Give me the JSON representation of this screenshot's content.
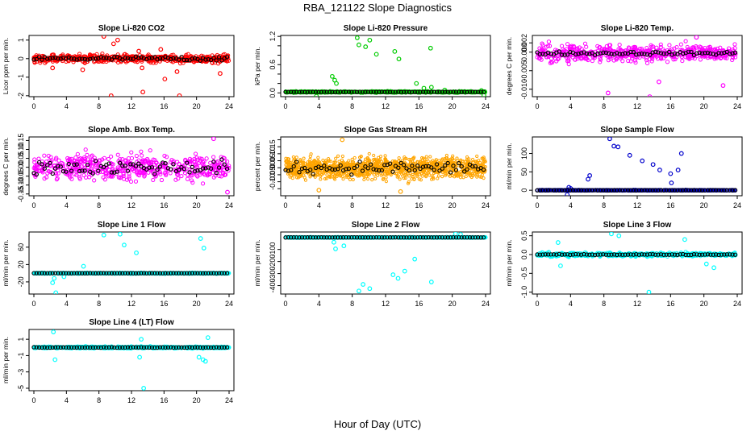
{
  "figure": {
    "title": "RBA_121122  Slope Diagnostics",
    "xlabel": "Hour of Day (UTC)"
  },
  "chart_data": [
    {
      "type": "scatter",
      "title": "Slope Li-820 CO2",
      "ylabel": "Licor ppm per min.",
      "color": "#ff0000",
      "xlim": [
        0,
        24
      ],
      "ylim": [
        -2.05,
        1.25
      ],
      "xticks": [
        "0",
        "4",
        "8",
        "12",
        "16",
        "20",
        "24"
      ],
      "yticks": [
        -2,
        -1,
        0,
        1
      ],
      "ytick_labels": [
        "-2",
        "-1",
        "0",
        "1"
      ],
      "baseline": 0,
      "spread": 0.22,
      "outliers": [
        [
          8.6,
          1.2
        ],
        [
          9.8,
          0.8
        ],
        [
          10.3,
          1.0
        ],
        [
          9.5,
          -2.0
        ],
        [
          13.4,
          -1.8
        ],
        [
          13.3,
          -0.5
        ],
        [
          12.9,
          0.4
        ],
        [
          16.1,
          -1.1
        ],
        [
          17.6,
          -0.7
        ],
        [
          17.9,
          -2.0
        ],
        [
          22.9,
          -0.8
        ],
        [
          6.0,
          -0.6
        ],
        [
          2.3,
          -0.5
        ],
        [
          15.6,
          0.5
        ]
      ]
    },
    {
      "type": "scatter",
      "title": "Slope Li-820 Pressure",
      "ylabel": "kPa per min.",
      "color": "#00cc00",
      "xlim": [
        0,
        24
      ],
      "ylim": [
        -0.08,
        1.22
      ],
      "xticks": [
        "0",
        "4",
        "8",
        "12",
        "16",
        "20",
        "24"
      ],
      "yticks": [
        0,
        0.2,
        0.4,
        0.6,
        0.8,
        1.0,
        1.2
      ],
      "ytick_labels": [
        "0.0",
        "",
        "",
        "0.6",
        "",
        "",
        "1.2"
      ],
      "baseline": 0.02,
      "spread": 0.015,
      "outliers": [
        [
          8.6,
          1.17
        ],
        [
          8.8,
          1.02
        ],
        [
          10.1,
          1.12
        ],
        [
          9.6,
          0.98
        ],
        [
          10.9,
          0.82
        ],
        [
          13.1,
          0.88
        ],
        [
          13.6,
          0.72
        ],
        [
          17.4,
          0.95
        ],
        [
          5.6,
          0.35
        ],
        [
          5.9,
          0.27
        ],
        [
          6.1,
          0.2
        ],
        [
          3.7,
          -0.07
        ],
        [
          15.7,
          0.2
        ],
        [
          17.5,
          0.12
        ],
        [
          16.6,
          0.1
        ],
        [
          19.1,
          0.06
        ],
        [
          23.5,
          0.05
        ],
        [
          23.8,
          -0.05
        ]
      ]
    },
    {
      "type": "scatter",
      "title": "Slope Li-820 Temp.",
      "ylabel": "degrees C per min.",
      "color": "#ff00ff",
      "xlim": [
        0,
        24
      ],
      "ylim": [
        -0.012,
        0.0045
      ],
      "xticks": [
        "0",
        "4",
        "8",
        "12",
        "16",
        "20",
        "24"
      ],
      "yticks": [
        -0.01,
        -0.005,
        0,
        0.0025
      ],
      "ytick_labels": [
        "-0.010",
        "-0.005",
        "0.000",
        "0.002"
      ],
      "baseline": -0.0003,
      "spread": 0.0023,
      "outliers": [
        [
          8.5,
          -0.011
        ],
        [
          13.5,
          -0.012
        ],
        [
          19.1,
          0.004
        ],
        [
          14.6,
          -0.008
        ],
        [
          22.3,
          -0.009
        ]
      ]
    },
    {
      "type": "scatter",
      "title": "Slope Amb. Box Temp.",
      "ylabel": "degrees C per min.",
      "color": "#ff00ff",
      "xlim": [
        0,
        24
      ],
      "ylim": [
        -0.16,
        0.17
      ],
      "xticks": [
        "0",
        "4",
        "8",
        "12",
        "16",
        "20",
        "24"
      ],
      "yticks": [
        -0.15,
        -0.1,
        -0.05,
        0,
        0.05,
        0.1,
        0.15
      ],
      "ytick_labels": [
        "-0.15",
        "-0.10",
        "-0.05",
        "0.00",
        "0.05",
        "0.10",
        "0.15"
      ],
      "baseline": 0.0,
      "spread": 0.075,
      "outliers": [
        [
          23.8,
          -0.14
        ],
        [
          22.1,
          0.16
        ]
      ]
    },
    {
      "type": "scatter",
      "title": "Slope Gas Stream RH",
      "ylabel": "percent per min.",
      "color": "#ffa500",
      "xlim": [
        0,
        24
      ],
      "ylim": [
        -0.2,
        0.22
      ],
      "xticks": [
        "0",
        "4",
        "8",
        "12",
        "16",
        "20",
        "24"
      ],
      "yticks": [
        -0.15,
        -0.1,
        -0.05,
        0,
        0.05,
        0.1,
        0.15,
        0.2
      ],
      "ytick_labels": [
        "",
        "-0.10",
        "-0.05",
        "0.00",
        "0.05",
        "0.10",
        "0.15",
        ""
      ],
      "baseline": 0.0,
      "spread": 0.08,
      "outliers": [
        [
          6.8,
          0.2
        ],
        [
          13.8,
          -0.17
        ],
        [
          4.0,
          -0.16
        ]
      ]
    },
    {
      "type": "scatter",
      "title": "Slope Sample Flow",
      "ylabel": "ml/min per min.",
      "color": "#0000cc",
      "xlim": [
        0,
        24
      ],
      "ylim": [
        -15,
        145
      ],
      "xticks": [
        "0",
        "4",
        "8",
        "12",
        "16",
        "20",
        "24"
      ],
      "yticks": [
        0,
        50,
        100
      ],
      "ytick_labels": [
        "0",
        "50",
        "100"
      ],
      "baseline": 0,
      "spread": 0.8,
      "outliers": [
        [
          8.7,
          140
        ],
        [
          9.2,
          120
        ],
        [
          9.7,
          118
        ],
        [
          11.1,
          95
        ],
        [
          12.6,
          80
        ],
        [
          13.9,
          70
        ],
        [
          14.7,
          55
        ],
        [
          16.0,
          45
        ],
        [
          16.1,
          20
        ],
        [
          16.9,
          55
        ],
        [
          17.3,
          100
        ],
        [
          6.1,
          30
        ],
        [
          6.3,
          40
        ],
        [
          3.6,
          -12
        ],
        [
          3.8,
          8
        ],
        [
          4.0,
          5
        ]
      ]
    },
    {
      "type": "scatter",
      "title": "Slope Line 1 Flow",
      "ylabel": "ml/min per min.",
      "color": "#00ffff",
      "xlim": [
        0,
        24
      ],
      "ylim": [
        -48,
        95
      ],
      "xticks": [
        "0",
        "4",
        "8",
        "12",
        "16",
        "20",
        "24"
      ],
      "yticks": [
        -20,
        20,
        60
      ],
      "ytick_labels": [
        "-20",
        "20",
        "60"
      ],
      "baseline": 0,
      "spread": 1.0,
      "outliers": [
        [
          8.6,
          88
        ],
        [
          10.6,
          90
        ],
        [
          12.6,
          47
        ],
        [
          11.1,
          65
        ],
        [
          20.5,
          80
        ],
        [
          20.9,
          58
        ],
        [
          2.3,
          -22
        ],
        [
          2.5,
          -12
        ],
        [
          3.7,
          -8
        ],
        [
          2.7,
          -45
        ],
        [
          6.1,
          16
        ]
      ]
    },
    {
      "type": "scatter",
      "title": "Slope Line 2 Flow",
      "ylabel": "ml/min per min.",
      "color": "#00ffff",
      "xlim": [
        0,
        24
      ],
      "ylim": [
        -470,
        45
      ],
      "xticks": [
        "0",
        "4",
        "8",
        "12",
        "16",
        "20",
        "24"
      ],
      "yticks": [
        -100,
        -200,
        -300,
        -400
      ],
      "ytick_labels": [
        "-100",
        "-200",
        "-300",
        "-400"
      ],
      "baseline": 0,
      "spread": 3,
      "outliers": [
        [
          8.8,
          -445
        ],
        [
          10.1,
          -425
        ],
        [
          9.3,
          -390
        ],
        [
          12.9,
          -310
        ],
        [
          13.5,
          -340
        ],
        [
          14.3,
          -280
        ],
        [
          15.5,
          -180
        ],
        [
          17.5,
          -370
        ],
        [
          5.8,
          -40
        ],
        [
          6.0,
          -95
        ],
        [
          7.0,
          -70
        ],
        [
          20.4,
          30
        ],
        [
          21.0,
          25
        ]
      ]
    },
    {
      "type": "scatter",
      "title": "Slope Line 3 Flow",
      "ylabel": "ml/min per min.",
      "color": "#00ffff",
      "xlim": [
        0,
        24
      ],
      "ylim": [
        -1.05,
        0.6
      ],
      "xticks": [
        "0",
        "4",
        "8",
        "12",
        "16",
        "20",
        "24"
      ],
      "yticks": [
        -1.0,
        -0.5,
        0,
        0.5
      ],
      "ytick_labels": [
        "-1.0",
        "-0.5",
        "0.0",
        "0.5"
      ],
      "baseline": 0,
      "spread": 0.05,
      "outliers": [
        [
          8.9,
          0.55
        ],
        [
          9.8,
          0.5
        ],
        [
          17.7,
          0.4
        ],
        [
          13.4,
          -1.0
        ],
        [
          2.5,
          0.32
        ],
        [
          20.3,
          -0.25
        ],
        [
          21.2,
          -0.35
        ],
        [
          2.8,
          -0.3
        ]
      ]
    },
    {
      "type": "scatter",
      "title": "Slope Line 4 (LT) Flow",
      "ylabel": "ml/min per min.",
      "color": "#00ffff",
      "xlim": [
        0,
        24
      ],
      "ylim": [
        -5.3,
        2.2
      ],
      "xticks": [
        "0",
        "4",
        "8",
        "12",
        "16",
        "20",
        "24"
      ],
      "yticks": [
        1,
        -1,
        -3,
        -5
      ],
      "ytick_labels": [
        "1",
        "-1",
        "-3",
        "-5"
      ],
      "baseline": 0,
      "spread": 0.12,
      "outliers": [
        [
          2.4,
          1.9
        ],
        [
          2.6,
          -1.5
        ],
        [
          13.5,
          -5.0
        ],
        [
          13.2,
          1.0
        ],
        [
          13.0,
          -1.2
        ],
        [
          20.8,
          -1.5
        ],
        [
          21.1,
          -1.7
        ],
        [
          20.3,
          -1.2
        ],
        [
          21.4,
          1.2
        ]
      ]
    }
  ]
}
